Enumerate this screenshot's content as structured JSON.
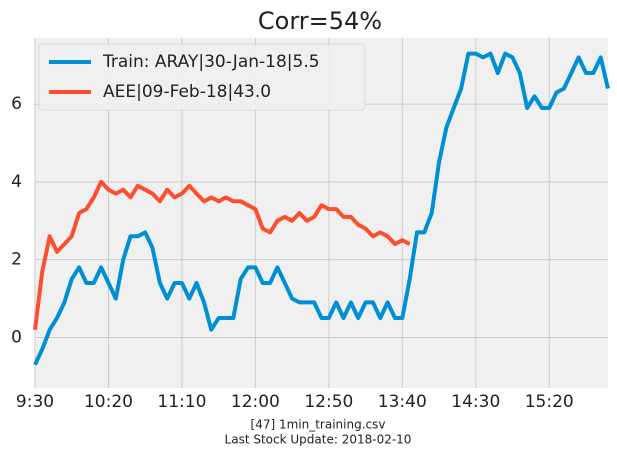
{
  "chart_data": {
    "type": "line",
    "title": "Corr=54%",
    "footer": [
      "[47] 1min_training.csv",
      "Last Stock Update: 2018-02-10"
    ],
    "x": [
      570,
      575,
      580,
      585,
      590,
      595,
      600,
      605,
      610,
      615,
      620,
      625,
      630,
      635,
      640,
      645,
      650,
      655,
      660,
      665,
      670,
      675,
      680,
      685,
      690,
      695,
      700,
      705,
      710,
      715,
      720,
      725,
      730,
      735,
      740,
      745,
      750,
      755,
      760,
      765,
      770,
      775,
      780,
      785,
      790,
      795,
      800,
      805,
      810,
      815,
      820,
      825,
      830,
      835,
      840,
      845,
      850,
      855,
      860,
      865,
      870,
      875,
      880,
      885,
      890,
      895,
      900,
      905,
      910,
      915,
      920,
      925,
      930,
      935,
      940,
      945,
      950,
      955,
      960
    ],
    "series": [
      {
        "name": "Train: ARAY|30-Jan-18|5.5",
        "color": "#008fd5",
        "values": [
          -0.7,
          -0.3,
          0.2,
          0.5,
          0.9,
          1.5,
          1.8,
          1.4,
          1.4,
          1.8,
          1.4,
          1.0,
          2.0,
          2.6,
          2.6,
          2.7,
          2.3,
          1.4,
          1.0,
          1.4,
          1.4,
          1.0,
          1.4,
          0.9,
          0.2,
          0.5,
          0.5,
          0.5,
          1.5,
          1.8,
          1.8,
          1.4,
          1.4,
          1.8,
          1.4,
          1.0,
          0.9,
          0.9,
          0.9,
          0.5,
          0.5,
          0.9,
          0.5,
          0.9,
          0.5,
          0.9,
          0.9,
          0.5,
          0.9,
          0.5,
          0.5,
          1.5,
          2.7,
          2.7,
          3.2,
          4.5,
          5.4,
          5.9,
          6.4,
          7.3,
          7.3,
          7.2,
          7.3,
          6.8,
          7.3,
          7.2,
          6.8,
          5.9,
          6.2,
          5.9,
          5.9,
          6.3,
          6.4,
          6.8,
          7.2,
          6.8,
          6.8,
          7.2,
          6.4
        ]
      },
      {
        "name": "AEE|09-Feb-18|43.0",
        "color": "#fc4f30",
        "values": [
          0.2,
          1.7,
          2.6,
          2.2,
          2.4,
          2.6,
          3.2,
          3.3,
          3.6,
          4.0,
          3.8,
          3.7,
          3.8,
          3.6,
          3.9,
          3.8,
          3.7,
          3.5,
          3.8,
          3.6,
          3.7,
          3.9,
          3.7,
          3.5,
          3.6,
          3.5,
          3.6,
          3.5,
          3.5,
          3.4,
          3.3,
          2.8,
          2.7,
          3.0,
          3.1,
          3.0,
          3.2,
          3.0,
          3.1,
          3.4,
          3.3,
          3.3,
          3.1,
          3.1,
          2.9,
          2.8,
          2.6,
          2.7,
          2.6,
          2.4,
          2.5,
          2.4,
          null,
          null,
          null,
          null,
          null,
          null,
          null,
          null,
          null,
          null,
          null,
          null,
          null,
          null,
          null,
          null,
          null,
          null,
          null,
          null,
          null,
          null,
          null,
          null,
          null,
          null,
          null
        ]
      }
    ],
    "xlim": [
      570,
      960
    ],
    "ylim": [
      -1.3,
      7.7
    ],
    "xticks": [
      {
        "value": 570,
        "label": "9:30"
      },
      {
        "value": 620,
        "label": "10:20"
      },
      {
        "value": 670,
        "label": "11:10"
      },
      {
        "value": 720,
        "label": "12:00"
      },
      {
        "value": 770,
        "label": "12:50"
      },
      {
        "value": 820,
        "label": "13:40"
      },
      {
        "value": 870,
        "label": "14:30"
      },
      {
        "value": 920,
        "label": "15:20"
      }
    ],
    "yticks": [
      0,
      2,
      4,
      6
    ],
    "grid": true,
    "legend": "upper left",
    "background": "#f0f0f0"
  }
}
